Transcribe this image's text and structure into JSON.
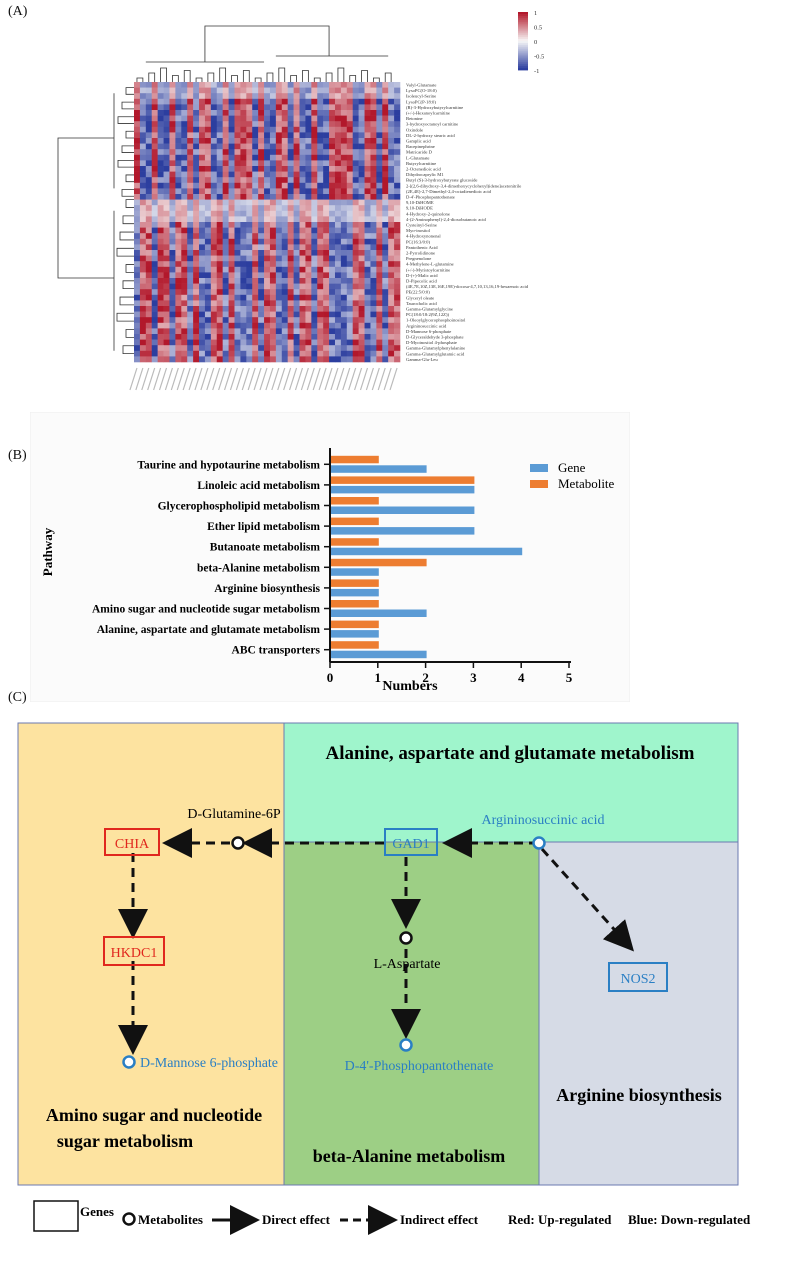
{
  "panels": {
    "a_label": "(A)",
    "b_label": "(B)",
    "c_label": "(C)"
  },
  "heatmap": {
    "colorbar_ticks": [
      "1",
      "0.5",
      "0",
      "-0.5",
      "-1"
    ],
    "colors": {
      "high": "#b2182b",
      "mid": "#f7f7f7",
      "low": "#2c3e9f"
    },
    "rows": [
      "Valyl-Glutamate",
      "LysoPC(O-18:0)",
      "Isoleucyl-Serine",
      "LysoPC(P-18:0)",
      "(R)-3-Hydroxybutyrylcarnitine",
      "(+/-)-Hexanoylcarnitine",
      "Betonine",
      "3-hydroxyoctanoyl carnitine",
      "Oxindole",
      "DL-2-hydroxy stearic acid",
      "Gamplic acid",
      "Racepinephrine",
      "Matricaride D",
      "L-Glutamate",
      "Butyrylcarnitine",
      "2-Octenedioic acid",
      "Dihydrocaprylic M1",
      "Butyl (S)-3-hydroxybutyrate glucoside",
      "2-[(2,6-dihydroxy-3,4-dimethoxycyclohexyl)idene]acetonitrile",
      "(2E,4E)-2,7-Dimethyl-2,4-octadienedioic acid",
      "D-4'-Phosphopantothenate",
      "9,10-DiHOME",
      "9,10-DiHODE",
      "4-Hydroxy-2-quinolone",
      "4-(2-Aminophenyl)-2,4-dioxobutanoic acid",
      "Cysteinyl-Serine",
      "Myo-inositol",
      "4-Hydroxynonenal",
      "PC(16:3/0:0)",
      "Pantothenic Acid",
      "2-Pyrrolidinone",
      "Pregnenolone",
      "4-Methylene-L-glutamine",
      "(+/-)-Myristoylcarnitine",
      "D-(+)-Malic acid",
      "D-Pipecolic acid",
      "(4E,7E,10Z,13E,16E,19E)-docosa-4,7,10,13,16,19-hexaenoic acid",
      "PE(22:5/0:0)",
      "Glyceryl oleate",
      "Taurocholic acid",
      "Gamma-Glutamylglycine",
      "PC(18:0/18:2(9Z,12Z))",
      "1-Oleoylglycerophosphoinositol",
      "Argininosuccinic acid",
      "D-Mannose 6-phosphate",
      "D-Glyceraldehyde 3-phosphate",
      "D-Myoinositol 4-phosphate",
      "Gamma-Glutamylphenylalanine",
      "Gamma-Glutamylglutamic acid",
      "Gamma-Glu-Leu"
    ]
  },
  "chart_data": {
    "type": "bar",
    "orientation": "horizontal",
    "ylabel": "Pathway",
    "xlabel": "Numbers",
    "xlim": [
      0,
      5
    ],
    "xticks": [
      "0",
      "1",
      "2",
      "3",
      "4",
      "5"
    ],
    "legend_position": "top-right",
    "categories": [
      "Taurine and hypotaurine metabolism",
      "Linoleic acid metabolism",
      "Glycerophospholipid metabolism",
      "Ether lipid metabolism",
      "Butanoate metabolism",
      "beta-Alanine metabolism",
      "Arginine biosynthesis",
      "Amino sugar and nucleotide sugar metabolism",
      "Alanine, aspartate and glutamate metabolism",
      "ABC transporters"
    ],
    "series": [
      {
        "name": "Gene",
        "color": "#5b9bd5",
        "values": [
          2,
          3,
          3,
          3,
          4,
          1,
          1,
          2,
          1,
          2
        ]
      },
      {
        "name": "Metabolite",
        "color": "#ed7d31",
        "values": [
          1,
          3,
          1,
          1,
          1,
          2,
          1,
          1,
          1,
          1
        ]
      }
    ]
  },
  "pathway_diagram": {
    "regions": {
      "alanine": "Alanine, aspartate and glutamate metabolism",
      "amino_sugar_line1": "Amino sugar and nucleotide",
      "amino_sugar_line2": "sugar metabolism",
      "beta_alanine": "beta-Alanine metabolism",
      "arginine": "Arginine biosynthesis"
    },
    "region_colors": {
      "amino_sugar": "#fde3a0",
      "alanine": "#9ff5cc",
      "beta_alanine": "#9dcf85",
      "arginine": "#d6dbe6"
    },
    "genes": {
      "chia": "CHIA",
      "hkdc1": "HKDC1",
      "gad1": "GAD1",
      "nos2": "NOS2"
    },
    "metabolites": {
      "glutamine6p": "D-Glutamine-6P",
      "argininosuccinic": "Argininosuccinic acid",
      "aspartate": "L-Aspartate",
      "mannose6p": "D-Mannose 6-phosphate",
      "phosphopantothenate": "D-4'-Phosphopantothenate"
    },
    "status_colors": {
      "up": "#e0281e",
      "down": "#2a7fc4",
      "neutral": "#111111"
    }
  },
  "legend": {
    "genes": "Genes",
    "metabolites": "Metabolites",
    "direct": "Direct effect",
    "indirect": "Indirect effect",
    "red": "Red: Up-regulated",
    "blue": "Blue: Down-regulated"
  }
}
